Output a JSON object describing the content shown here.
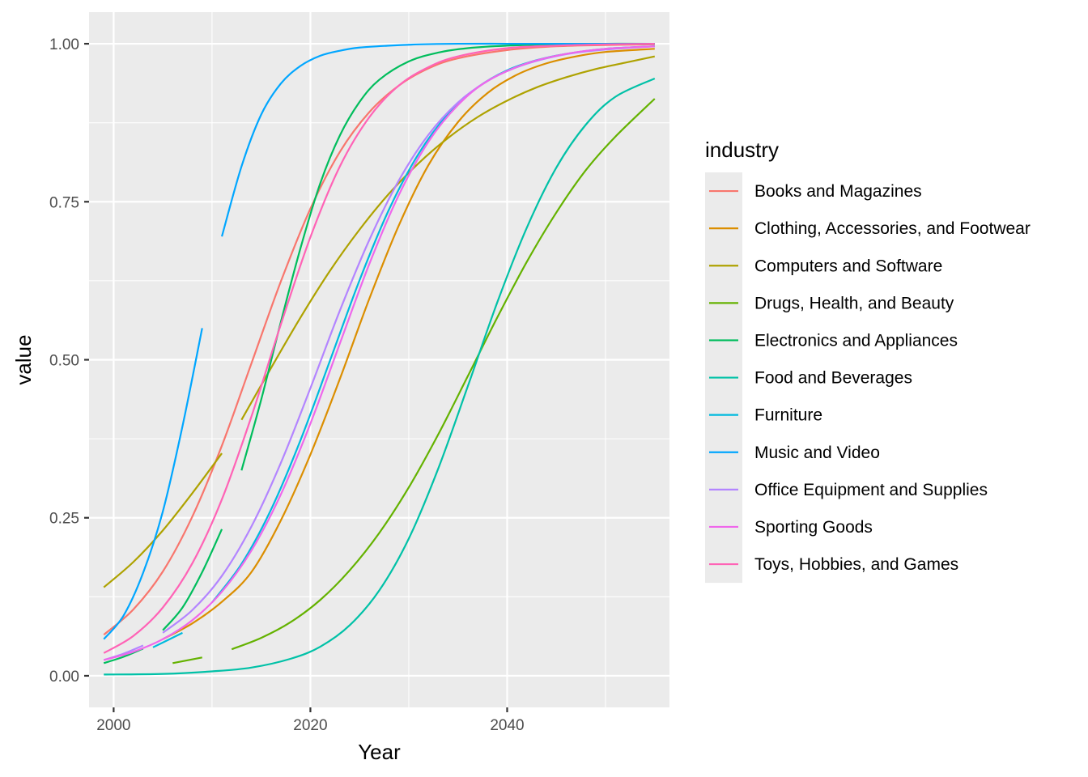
{
  "chart_data": {
    "type": "line",
    "title": "",
    "xlabel": "Year",
    "ylabel": "value",
    "xlim": [
      1997.5,
      2056.5
    ],
    "ylim": [
      -0.05,
      1.05
    ],
    "x_ticks": [
      2000,
      2020,
      2040
    ],
    "x_tick_labels": [
      "2000",
      "2020",
      "2040"
    ],
    "x_minor_ticks": [
      2010,
      2030,
      2050
    ],
    "y_ticks": [
      0,
      0.25,
      0.5,
      0.75,
      1
    ],
    "y_tick_labels": [
      "0.00",
      "0.25",
      "0.50",
      "0.75",
      "1.00"
    ],
    "y_minor_ticks": [
      0.125,
      0.375,
      0.625,
      0.875
    ],
    "grid": true,
    "panel_background": "#ebebeb",
    "legend": {
      "title": "industry",
      "placement": "right"
    },
    "series": [
      {
        "name": "Books and Magazines",
        "color": "#F8766D",
        "segments": [
          {
            "x": [
              1999,
              2002,
              2005,
              2008,
              2011,
              2014,
              2017,
              2020,
              2023,
              2026,
              2029,
              2032,
              2035,
              2040,
              2045,
              2050,
              2055
            ],
            "y": [
              0.065,
              0.105,
              0.165,
              0.252,
              0.364,
              0.494,
              0.624,
              0.739,
              0.829,
              0.892,
              0.934,
              0.961,
              0.977,
              0.99,
              0.996,
              0.998,
              0.999
            ]
          }
        ]
      },
      {
        "name": "Clothing, Accessories, and Footwear",
        "color": "#DB8E00",
        "segments": [
          {
            "x": [
              2005,
              2008,
              2011,
              2014,
              2017,
              2020,
              2023,
              2026,
              2029,
              2032,
              2035,
              2038,
              2041,
              2044,
              2047,
              2050,
              2055
            ],
            "y": [
              0.058,
              0.083,
              0.117,
              0.164,
              0.246,
              0.35,
              0.47,
              0.597,
              0.713,
              0.808,
              0.876,
              0.922,
              0.951,
              0.969,
              0.98,
              0.987,
              0.992
            ]
          }
        ]
      },
      {
        "name": "Computers and Software",
        "color": "#AEA200",
        "segments": [
          {
            "x": [
              1999,
              2002,
              2005,
              2008,
              2011
            ],
            "y": [
              0.14,
              0.18,
              0.23,
              0.289,
              0.352
            ]
          },
          {
            "x": [
              2013,
              2016,
              2019,
              2022,
              2025,
              2028,
              2031,
              2034,
              2037,
              2040,
              2043,
              2046,
              2049,
              2052,
              2055
            ],
            "y": [
              0.405,
              0.487,
              0.567,
              0.641,
              0.706,
              0.763,
              0.811,
              0.851,
              0.884,
              0.91,
              0.931,
              0.947,
              0.96,
              0.97,
              0.98
            ]
          }
        ]
      },
      {
        "name": "Drugs, Health, and Beauty",
        "color": "#64B200",
        "segments": [
          {
            "x": [
              2006,
              2009
            ],
            "y": [
              0.02,
              0.029
            ]
          },
          {
            "x": [
              2012,
              2015,
              2018,
              2021,
              2024,
              2027,
              2030,
              2033,
              2036,
              2039,
              2042,
              2045,
              2048,
              2051,
              2055
            ],
            "y": [
              0.042,
              0.06,
              0.085,
              0.12,
              0.167,
              0.226,
              0.298,
              0.382,
              0.474,
              0.567,
              0.655,
              0.733,
              0.8,
              0.853,
              0.913
            ]
          }
        ]
      },
      {
        "name": "Electronics and Appliances",
        "color": "#00BD5C",
        "segments": [
          {
            "x": [
              1999,
              2001,
              2003
            ],
            "y": [
              0.02,
              0.03,
              0.043
            ]
          },
          {
            "x": [
              2005,
              2007,
              2009,
              2011
            ],
            "y": [
              0.072,
              0.108,
              0.164,
              0.232
            ]
          },
          {
            "x": [
              2013,
              2015,
              2017,
              2019,
              2021,
              2023,
              2025,
              2027,
              2030,
              2033,
              2036,
              2040,
              2045,
              2050,
              2055
            ],
            "y": [
              0.325,
              0.437,
              0.56,
              0.677,
              0.779,
              0.855,
              0.908,
              0.943,
              0.972,
              0.986,
              0.993,
              0.997,
              0.999,
              1.0,
              1.0
            ]
          }
        ]
      },
      {
        "name": "Food and Beverages",
        "color": "#00C1A7",
        "segments": [
          {
            "x": [
              1999,
              2005,
              2010,
              2014,
              2018,
              2021,
              2024,
              2027,
              2030,
              2033,
              2036,
              2039,
              2042,
              2045,
              2048,
              2051,
              2055
            ],
            "y": [
              0.002,
              0.003,
              0.007,
              0.013,
              0.027,
              0.046,
              0.08,
              0.135,
              0.217,
              0.328,
              0.458,
              0.591,
              0.709,
              0.804,
              0.872,
              0.916,
              0.945
            ]
          }
        ]
      },
      {
        "name": "Furniture",
        "color": "#00BADE",
        "segments": [
          {
            "x": [
              2004,
              2007
            ],
            "y": [
              0.045,
              0.068
            ]
          },
          {
            "x": [
              2010,
              2013,
              2016,
              2019,
              2022,
              2025,
              2028,
              2031,
              2034,
              2037,
              2040,
              2043,
              2046,
              2050,
              2055
            ],
            "y": [
              0.116,
              0.177,
              0.263,
              0.373,
              0.499,
              0.626,
              0.738,
              0.826,
              0.889,
              0.931,
              0.958,
              0.974,
              0.984,
              0.992,
              0.996
            ]
          }
        ]
      },
      {
        "name": "Music and Video",
        "color": "#00A6FF",
        "segments": [
          {
            "x": [
              1999,
              2001,
              2003,
              2005,
              2007,
              2009
            ],
            "y": [
              0.058,
              0.095,
              0.163,
              0.26,
              0.395,
              0.55
            ]
          },
          {
            "x": [
              2011,
              2013,
              2015,
              2017,
              2019,
              2021,
              2023,
              2025,
              2028,
              2031,
              2035,
              2040,
              2045,
              2050,
              2055
            ],
            "y": [
              0.695,
              0.806,
              0.888,
              0.937,
              0.965,
              0.981,
              0.989,
              0.994,
              0.997,
              0.999,
              1.0,
              1.0,
              1.0,
              1.0,
              1.0
            ]
          }
        ]
      },
      {
        "name": "Office Equipment and Supplies",
        "color": "#B385FF",
        "segments": [
          {
            "x": [
              1999,
              2001,
              2003
            ],
            "y": [
              0.025,
              0.035,
              0.048
            ]
          },
          {
            "x": [
              2005,
              2008,
              2011,
              2014,
              2017,
              2020,
              2023,
              2026,
              2029,
              2032,
              2035,
              2038,
              2041,
              2044,
              2047,
              2051,
              2055
            ],
            "y": [
              0.068,
              0.104,
              0.158,
              0.236,
              0.337,
              0.455,
              0.578,
              0.69,
              0.784,
              0.856,
              0.907,
              0.941,
              0.963,
              0.977,
              0.986,
              0.992,
              0.996
            ]
          }
        ]
      },
      {
        "name": "Sporting Goods",
        "color": "#EF67EB",
        "segments": [
          {
            "x": [
              1999,
              2002,
              2005,
              2008,
              2011,
              2014,
              2017,
              2020,
              2023,
              2026,
              2029,
              2032,
              2035,
              2038,
              2042,
              2046,
              2050,
              2055
            ],
            "y": [
              0.025,
              0.038,
              0.058,
              0.088,
              0.133,
              0.198,
              0.287,
              0.399,
              0.526,
              0.652,
              0.761,
              0.845,
              0.903,
              0.941,
              0.969,
              0.984,
              0.992,
              0.996
            ]
          }
        ]
      },
      {
        "name": "Toys, Hobbies, and Games",
        "color": "#FF63B6",
        "segments": [
          {
            "x": [
              1999,
              2002,
              2005,
              2008,
              2011,
              2014,
              2017,
              2020,
              2023,
              2026,
              2029,
              2032,
              2035,
              2040,
              2045,
              2050,
              2055
            ],
            "y": [
              0.036,
              0.063,
              0.108,
              0.178,
              0.279,
              0.41,
              0.556,
              0.694,
              0.806,
              0.884,
              0.934,
              0.963,
              0.98,
              0.993,
              0.997,
              0.999,
              1.0
            ]
          }
        ]
      }
    ]
  }
}
